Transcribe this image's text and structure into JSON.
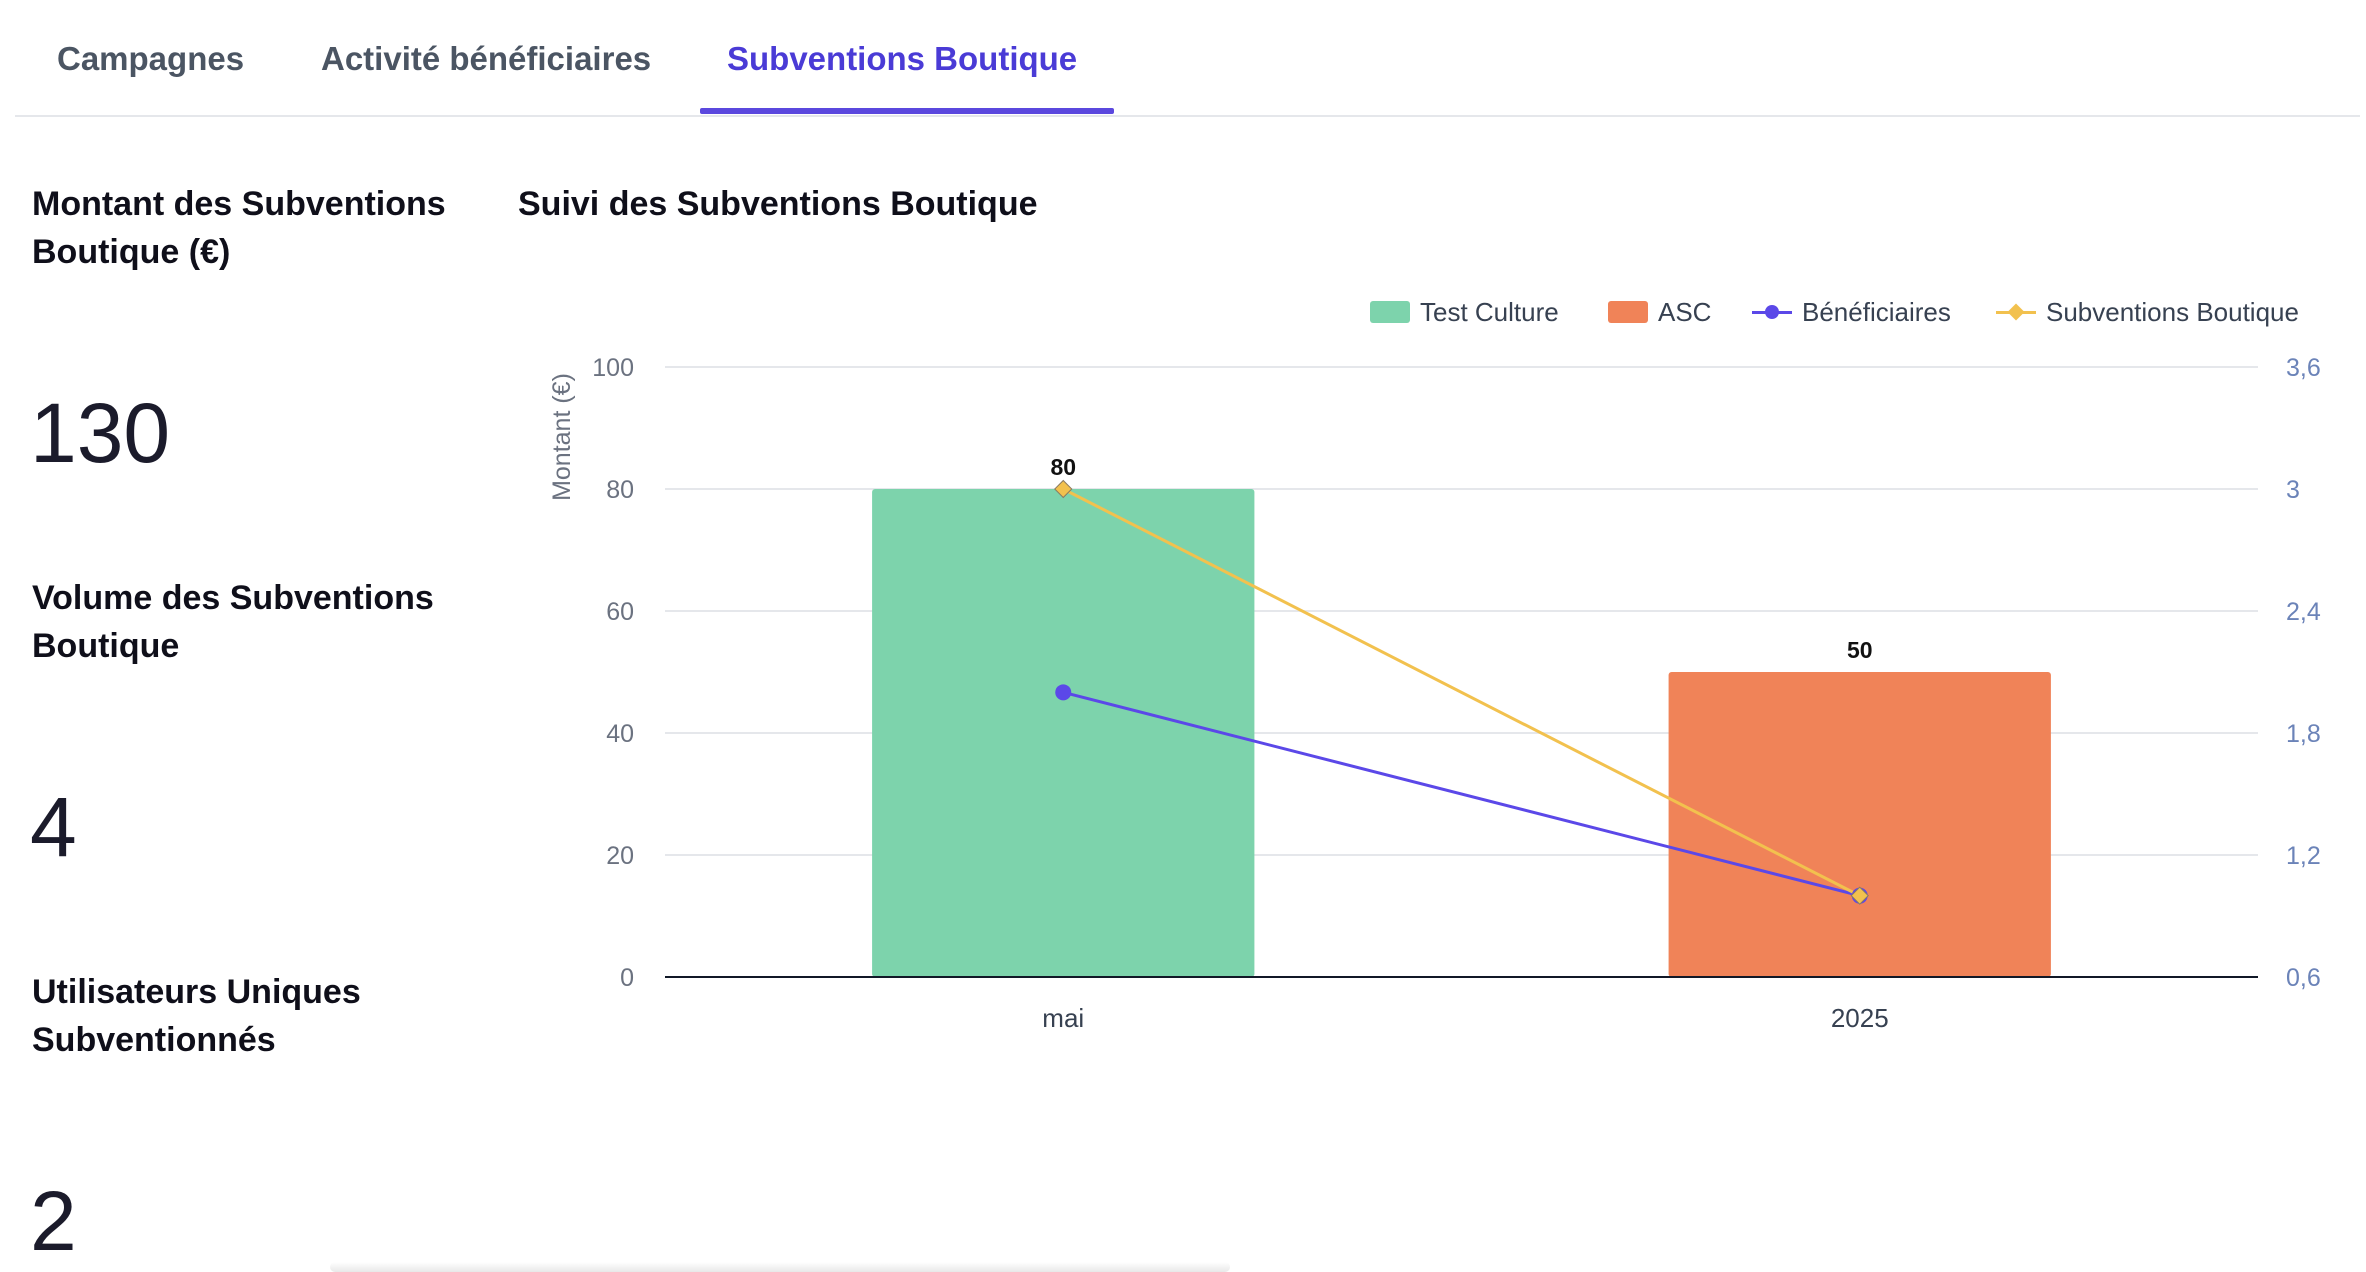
{
  "tabs": [
    {
      "label": "Campagnes",
      "active": false
    },
    {
      "label": "Activité bénéficiaires",
      "active": false
    },
    {
      "label": "Subventions Boutique",
      "active": true
    }
  ],
  "kpis": [
    {
      "title": "Montant des Subventions Boutique (€)",
      "value": "130"
    },
    {
      "title": "Volume des Subventions Boutique",
      "value": "4"
    },
    {
      "title": "Utilisateurs Uniques Subventionnés",
      "value": "2"
    }
  ],
  "chart_title": "Suivi des Subventions Boutique",
  "colors": {
    "accent": "#5b48de",
    "test_culture": "#7dd3ac",
    "asc": "#f08358",
    "beneficiaires": "#5b48e8",
    "subventions": "#f2c14e"
  },
  "chart_data": {
    "type": "bar",
    "categories": [
      "mai",
      "2025"
    ],
    "series": [
      {
        "name": "Test Culture",
        "kind": "bar",
        "axis": "left",
        "values": [
          80,
          null
        ],
        "color": "#7dd3ac"
      },
      {
        "name": "ASC",
        "kind": "bar",
        "axis": "left",
        "values": [
          null,
          50
        ],
        "color": "#f08358"
      },
      {
        "name": "Bénéficiaires",
        "kind": "line",
        "axis": "right",
        "values": [
          2,
          1
        ],
        "color": "#5b48e8",
        "marker": "circle"
      },
      {
        "name": "Subventions Boutique",
        "kind": "line",
        "axis": "right",
        "values": [
          3,
          1
        ],
        "color": "#f2c14e",
        "marker": "diamond"
      }
    ],
    "data_labels": [
      "80",
      "50"
    ],
    "ylabel": "Montant (€)",
    "ylim": [
      0,
      100
    ],
    "y_ticks": [
      "0",
      "20",
      "40",
      "60",
      "80",
      "100"
    ],
    "y2lim": [
      0.6,
      3.6
    ],
    "y2_ticks": [
      "0,6",
      "1,2",
      "1,8",
      "2,4",
      "3",
      "3,6"
    ],
    "grid": true,
    "legend_position": "top-right"
  }
}
